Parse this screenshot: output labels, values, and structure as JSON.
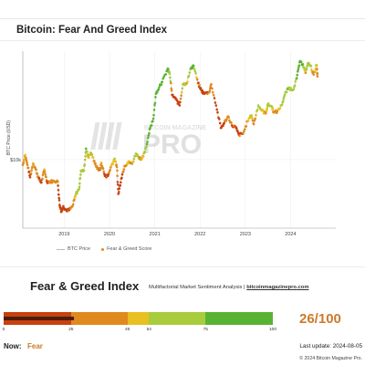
{
  "chart_title": "Bitcoin: Fear And Greed Index",
  "watermark": {
    "line1": "BITCOIN MAGAZINE",
    "line2": "PRO"
  },
  "legend": {
    "price_label": "BTC Price",
    "score_label": "Fear & Greed Score"
  },
  "colors": {
    "extreme_fear": "#c8400f",
    "fear": "#e08a1e",
    "neutral": "#e8c020",
    "greed": "#a8cc3c",
    "extreme_greed": "#59b333",
    "price_line": "#c8c8c8"
  },
  "chart_data": {
    "type": "scatter",
    "title": "Bitcoin: Fear And Greed Index",
    "xlabel": "",
    "ylabel": "BTC Price (USD)",
    "y_scale": "log",
    "y_ticks": [
      {
        "value": 10000,
        "label": "$10k"
      }
    ],
    "x_ticks": [
      "2019",
      "2020",
      "2021",
      "2022",
      "2023",
      "2024"
    ],
    "xlim": [
      "2018-02-01",
      "2024-12-31"
    ],
    "ylim": [
      2500,
      90000
    ],
    "grid": true,
    "legend_position": "bottom-left",
    "series": [
      {
        "name": "BTC Price",
        "style": "line"
      },
      {
        "name": "Fear & Greed Score",
        "style": "scatter"
      }
    ],
    "points": [
      [
        "2018-02-01",
        9000,
        35
      ],
      [
        "2018-02-20",
        11000,
        48
      ],
      [
        "2018-03-10",
        9000,
        30
      ],
      [
        "2018-04-01",
        7000,
        22
      ],
      [
        "2018-04-25",
        9300,
        48
      ],
      [
        "2018-05-15",
        8300,
        40
      ],
      [
        "2018-06-10",
        6800,
        25
      ],
      [
        "2018-07-01",
        6300,
        22
      ],
      [
        "2018-07-25",
        8200,
        48
      ],
      [
        "2018-08-15",
        6400,
        22
      ],
      [
        "2018-09-10",
        6400,
        28
      ],
      [
        "2018-10-10",
        6500,
        30
      ],
      [
        "2018-11-10",
        6400,
        30
      ],
      [
        "2018-11-25",
        4000,
        12
      ],
      [
        "2018-12-10",
        3500,
        10
      ],
      [
        "2018-12-25",
        3900,
        18
      ],
      [
        "2019-01-15",
        3600,
        20
      ],
      [
        "2019-02-10",
        3600,
        22
      ],
      [
        "2019-03-10",
        3900,
        35
      ],
      [
        "2019-04-05",
        5000,
        55
      ],
      [
        "2019-05-01",
        5500,
        58
      ],
      [
        "2019-05-15",
        8000,
        70
      ],
      [
        "2019-06-10",
        8000,
        62
      ],
      [
        "2019-06-26",
        12500,
        80
      ],
      [
        "2019-07-15",
        10500,
        45
      ],
      [
        "2019-08-05",
        11500,
        55
      ],
      [
        "2019-09-01",
        9700,
        45
      ],
      [
        "2019-09-25",
        8300,
        25
      ],
      [
        "2019-10-20",
        8200,
        25
      ],
      [
        "2019-10-28",
        9400,
        50
      ],
      [
        "2019-11-25",
        7200,
        20
      ],
      [
        "2019-12-20",
        7200,
        22
      ],
      [
        "2020-01-15",
        8800,
        50
      ],
      [
        "2020-02-12",
        10200,
        55
      ],
      [
        "2020-03-01",
        8600,
        35
      ],
      [
        "2020-03-13",
        5000,
        8
      ],
      [
        "2020-04-05",
        6800,
        15
      ],
      [
        "2020-05-01",
        8800,
        40
      ],
      [
        "2020-06-01",
        9500,
        48
      ],
      [
        "2020-07-01",
        9200,
        45
      ],
      [
        "2020-08-01",
        11300,
        72
      ],
      [
        "2020-09-05",
        10200,
        42
      ],
      [
        "2020-10-01",
        10700,
        50
      ],
      [
        "2020-10-25",
        13000,
        70
      ],
      [
        "2020-11-20",
        18500,
        88
      ],
      [
        "2020-12-20",
        23000,
        92
      ],
      [
        "2021-01-10",
        38000,
        90
      ],
      [
        "2021-02-10",
        45000,
        88
      ],
      [
        "2021-03-01",
        48000,
        80
      ],
      [
        "2021-04-14",
        63000,
        90
      ],
      [
        "2021-05-01",
        57000,
        70
      ],
      [
        "2021-05-20",
        37000,
        15
      ],
      [
        "2021-06-20",
        34000,
        20
      ],
      [
        "2021-07-20",
        30000,
        15
      ],
      [
        "2021-08-15",
        46000,
        70
      ],
      [
        "2021-09-15",
        47000,
        45
      ],
      [
        "2021-10-20",
        64000,
        80
      ],
      [
        "2021-11-10",
        67000,
        82
      ],
      [
        "2021-12-15",
        47000,
        25
      ],
      [
        "2022-01-10",
        41000,
        20
      ],
      [
        "2022-02-01",
        38000,
        20
      ],
      [
        "2022-03-15",
        39000,
        25
      ],
      [
        "2022-04-01",
        46000,
        45
      ],
      [
        "2022-05-10",
        30000,
        12
      ],
      [
        "2022-06-18",
        19000,
        8
      ],
      [
        "2022-07-15",
        21000,
        20
      ],
      [
        "2022-08-15",
        24000,
        42
      ],
      [
        "2022-09-15",
        20000,
        22
      ],
      [
        "2022-10-15",
        19300,
        25
      ],
      [
        "2022-11-10",
        16500,
        22
      ],
      [
        "2022-12-15",
        17000,
        28
      ],
      [
        "2023-01-20",
        22000,
        50
      ],
      [
        "2023-02-20",
        24500,
        55
      ],
      [
        "2023-03-10",
        20500,
        35
      ],
      [
        "2023-04-15",
        30000,
        62
      ],
      [
        "2023-05-15",
        27000,
        50
      ],
      [
        "2023-06-15",
        25500,
        45
      ],
      [
        "2023-07-01",
        30500,
        60
      ],
      [
        "2023-08-01",
        29500,
        55
      ],
      [
        "2023-08-20",
        26000,
        40
      ],
      [
        "2023-09-15",
        26500,
        42
      ],
      [
        "2023-10-20",
        30000,
        55
      ],
      [
        "2023-11-15",
        37000,
        70
      ],
      [
        "2023-12-15",
        43000,
        72
      ],
      [
        "2024-01-20",
        41000,
        55
      ],
      [
        "2024-02-20",
        52000,
        78
      ],
      [
        "2024-03-14",
        72000,
        85
      ],
      [
        "2024-04-10",
        69000,
        75
      ],
      [
        "2024-05-01",
        58000,
        45
      ],
      [
        "2024-05-20",
        70000,
        75
      ],
      [
        "2024-06-10",
        67000,
        65
      ],
      [
        "2024-07-05",
        56000,
        30
      ],
      [
        "2024-07-29",
        68000,
        62
      ],
      [
        "2024-08-05",
        54000,
        26
      ]
    ]
  },
  "index_panel": {
    "title": "Fear & Greed Index",
    "subtitle": "Multifactorial Market Sentiment Analysis | ",
    "site": "bitcoinmagazinepro.com",
    "gauge": {
      "value": 26,
      "min": 0,
      "max": 100,
      "segments": [
        {
          "from": 0,
          "to": 25,
          "color": "#c8400f"
        },
        {
          "from": 25,
          "to": 46,
          "color": "#e08a1e"
        },
        {
          "from": 46,
          "to": 54,
          "color": "#e8c020"
        },
        {
          "from": 54,
          "to": 75,
          "color": "#a8cc3c"
        },
        {
          "from": 75,
          "to": 100,
          "color": "#59b333"
        }
      ],
      "tick_labels": [
        "0",
        "25",
        "46",
        "54",
        "75",
        "100"
      ]
    },
    "score_text": "26/100",
    "now_label": "Now:",
    "now_value": "Fear",
    "last_update": "Last update: 2024-08-05",
    "copyright": "© 2024 Bitcoin Magazine Pro."
  }
}
